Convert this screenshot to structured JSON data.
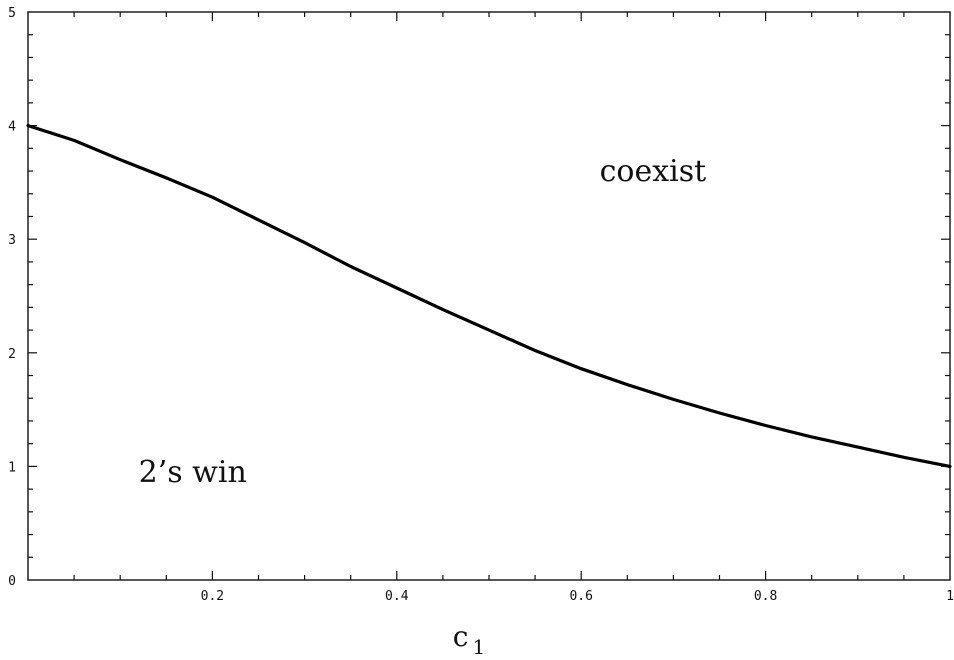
{
  "chart_data": {
    "type": "line",
    "title": "",
    "xlabel": "c",
    "xlabel_subscript": "1",
    "ylabel": "",
    "xlim": [
      0,
      1
    ],
    "ylim": [
      0,
      5
    ],
    "x_major_ticks": [
      {
        "value": 0.2,
        "label": "0.2"
      },
      {
        "value": 0.4,
        "label": "0.4"
      },
      {
        "value": 0.6,
        "label": "0.6"
      },
      {
        "value": 0.8,
        "label": "0.8"
      },
      {
        "value": 1.0,
        "label": "1"
      }
    ],
    "y_major_ticks": [
      {
        "value": 0,
        "label": "0"
      },
      {
        "value": 1,
        "label": "1"
      },
      {
        "value": 2,
        "label": "2"
      },
      {
        "value": 3,
        "label": "3"
      },
      {
        "value": 4,
        "label": "4"
      },
      {
        "value": 5,
        "label": "5"
      }
    ],
    "grid": false,
    "series": [
      {
        "x": [
          0.0,
          0.05,
          0.1,
          0.15,
          0.2,
          0.25,
          0.3,
          0.35,
          0.4,
          0.45,
          0.5,
          0.55,
          0.6,
          0.65,
          0.7,
          0.75,
          0.8,
          0.85,
          0.9,
          0.95,
          1.0
        ],
        "y": [
          4.0,
          3.87,
          3.7,
          3.54,
          3.37,
          3.17,
          2.97,
          2.76,
          2.57,
          2.38,
          2.2,
          2.02,
          1.86,
          1.72,
          1.59,
          1.47,
          1.36,
          1.26,
          1.17,
          1.08,
          1.0
        ]
      }
    ],
    "annotations": [
      {
        "text": "coexist",
        "x": 0.62,
        "y": 3.6
      },
      {
        "text": "2’s win",
        "x": 0.12,
        "y": 0.95
      }
    ]
  }
}
